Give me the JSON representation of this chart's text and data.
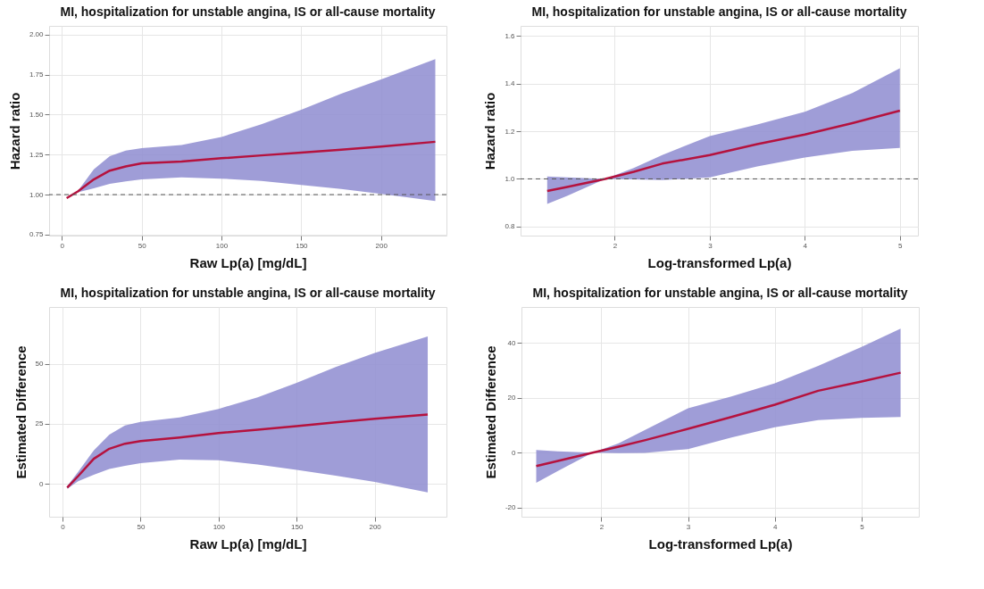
{
  "chart_data": [
    {
      "type": "line",
      "title": "MI, hospitalization for unstable angina, IS or all-cause mortality",
      "xlabel": "Raw Lp(a) [mg/dL]",
      "ylabel": "Hazard ratio",
      "xlim": [
        -8,
        241
      ],
      "xticks": [
        0,
        50,
        100,
        150,
        200
      ],
      "ylim": [
        0.744,
        2.054
      ],
      "yticks": [
        {
          "value": 0.75,
          "label": "0.75"
        },
        {
          "value": 1,
          "label": "1.00"
        },
        {
          "value": 1.25,
          "label": "1.25"
        },
        {
          "value": 1.5,
          "label": "1.50"
        },
        {
          "value": 1.75,
          "label": "1.75"
        },
        {
          "value": 2,
          "label": "2.00"
        }
      ],
      "grid": true,
      "marker": "none",
      "line_style": "solid",
      "ref_lines": [
        {
          "axis": "y",
          "value": 1,
          "line_style": "dashed",
          "color": "#555555"
        }
      ],
      "series": [
        {
          "color": "#b5123e",
          "x": [
            3,
            10,
            20,
            30,
            40,
            50,
            75,
            100,
            125,
            150,
            175,
            200,
            234
          ],
          "values": [
            0.978,
            1.02,
            1.095,
            1.15,
            1.176,
            1.195,
            1.207,
            1.227,
            1.245,
            1.262,
            1.28,
            1.3,
            1.33
          ],
          "lower": [
            0.978,
            1.014,
            1.04,
            1.068,
            1.083,
            1.095,
            1.108,
            1.1,
            1.085,
            1.06,
            1.035,
            1.005,
            0.96
          ],
          "upper": [
            0.978,
            1.023,
            1.158,
            1.24,
            1.275,
            1.29,
            1.31,
            1.36,
            1.44,
            1.53,
            1.63,
            1.72,
            1.847
          ]
        }
      ]
    },
    {
      "type": "line",
      "title": "MI, hospitalization for unstable angina, IS or all-cause mortality",
      "xlabel": "Log-transformed Lp(a)",
      "ylabel": "Hazard ratio",
      "xlim": [
        1.01,
        5.19
      ],
      "xticks": [
        2,
        3,
        4,
        5
      ],
      "ylim": [
        0.762,
        1.642
      ],
      "yticks": [
        {
          "value": 0.8,
          "label": "0.8"
        },
        {
          "value": 1,
          "label": "1.0"
        },
        {
          "value": 1.2,
          "label": "1.2"
        },
        {
          "value": 1.4,
          "label": "1.4"
        },
        {
          "value": 1.6,
          "label": "1.6"
        }
      ],
      "grid": true,
      "marker": "none",
      "line_style": "solid",
      "ref_lines": [
        {
          "axis": "y",
          "value": 1,
          "line_style": "dashed",
          "color": "#555555"
        }
      ],
      "series": [
        {
          "color": "#b5123e",
          "x": [
            1.29,
            1.5,
            1.9,
            2.2,
            2.5,
            3,
            3.5,
            4,
            4.5,
            5
          ],
          "values": [
            0.949,
            0.966,
            1.0,
            1.03,
            1.064,
            1.1,
            1.146,
            1.186,
            1.234,
            1.286
          ],
          "lower": [
            0.895,
            0.929,
            1.0,
            0.998,
            0.995,
            1.006,
            1.052,
            1.09,
            1.118,
            1.13
          ],
          "upper": [
            1.01,
            1.006,
            1.0,
            1.046,
            1.1,
            1.18,
            1.228,
            1.282,
            1.36,
            1.464
          ]
        }
      ]
    },
    {
      "type": "line",
      "title": "MI, hospitalization for unstable angina, IS or all-cause mortality",
      "xlabel": "Raw Lp(a) [mg/dL]",
      "ylabel": "Estimated Difference",
      "xlim": [
        -8.6,
        246
      ],
      "xticks": [
        0,
        50,
        100,
        150,
        200
      ],
      "ylim": [
        -13.7,
        73.6
      ],
      "yticks": [
        0,
        25,
        50
      ],
      "grid": true,
      "marker": "none",
      "line_style": "solid",
      "series": [
        {
          "color": "#b5123e",
          "x": [
            3,
            10,
            20,
            30,
            40,
            50,
            75,
            100,
            125,
            150,
            175,
            200,
            234
          ],
          "values": [
            -1.6,
            3.2,
            10.4,
            14.6,
            16.7,
            17.8,
            19.3,
            21.1,
            22.5,
            24.0,
            25.6,
            27.1,
            28.8
          ],
          "lower": [
            -2.1,
            1.1,
            3.8,
            6.2,
            7.5,
            8.6,
            10.1,
            9.8,
            8.0,
            5.8,
            3.4,
            0.8,
            -3.6
          ],
          "upper": [
            -1,
            5,
            13.9,
            20.5,
            24.3,
            25.8,
            27.6,
            31.2,
            36,
            42,
            48.6,
            54.5,
            61.3
          ]
        }
      ]
    },
    {
      "type": "line",
      "title": "MI, hospitalization for unstable angina, IS or all-cause mortality",
      "xlabel": "Log-transformed Lp(a)",
      "ylabel": "Estimated Difference",
      "xlim": [
        1.08,
        5.66
      ],
      "xticks": [
        2,
        3,
        4,
        5
      ],
      "ylim": [
        -23.4,
        53.2
      ],
      "yticks": [
        -20,
        0,
        20,
        40
      ],
      "grid": true,
      "marker": "none",
      "line_style": "solid",
      "series": [
        {
          "color": "#b5123e",
          "x": [
            1.25,
            1.5,
            1.9,
            2.2,
            2.5,
            3,
            3.5,
            4,
            4.5,
            5,
            5.45
          ],
          "values": [
            -4.9,
            -3,
            0,
            2.2,
            4.5,
            8.7,
            13,
            17.5,
            22.6,
            26,
            29.2
          ],
          "lower": [
            -11,
            -6.7,
            0,
            -0.2,
            -0.1,
            1.3,
            5.5,
            9.3,
            11.9,
            12.7,
            13
          ],
          "upper": [
            1,
            0.5,
            0,
            3.4,
            8.2,
            16.2,
            20.5,
            25.3,
            31.7,
            38.6,
            45.3
          ]
        }
      ]
    }
  ]
}
